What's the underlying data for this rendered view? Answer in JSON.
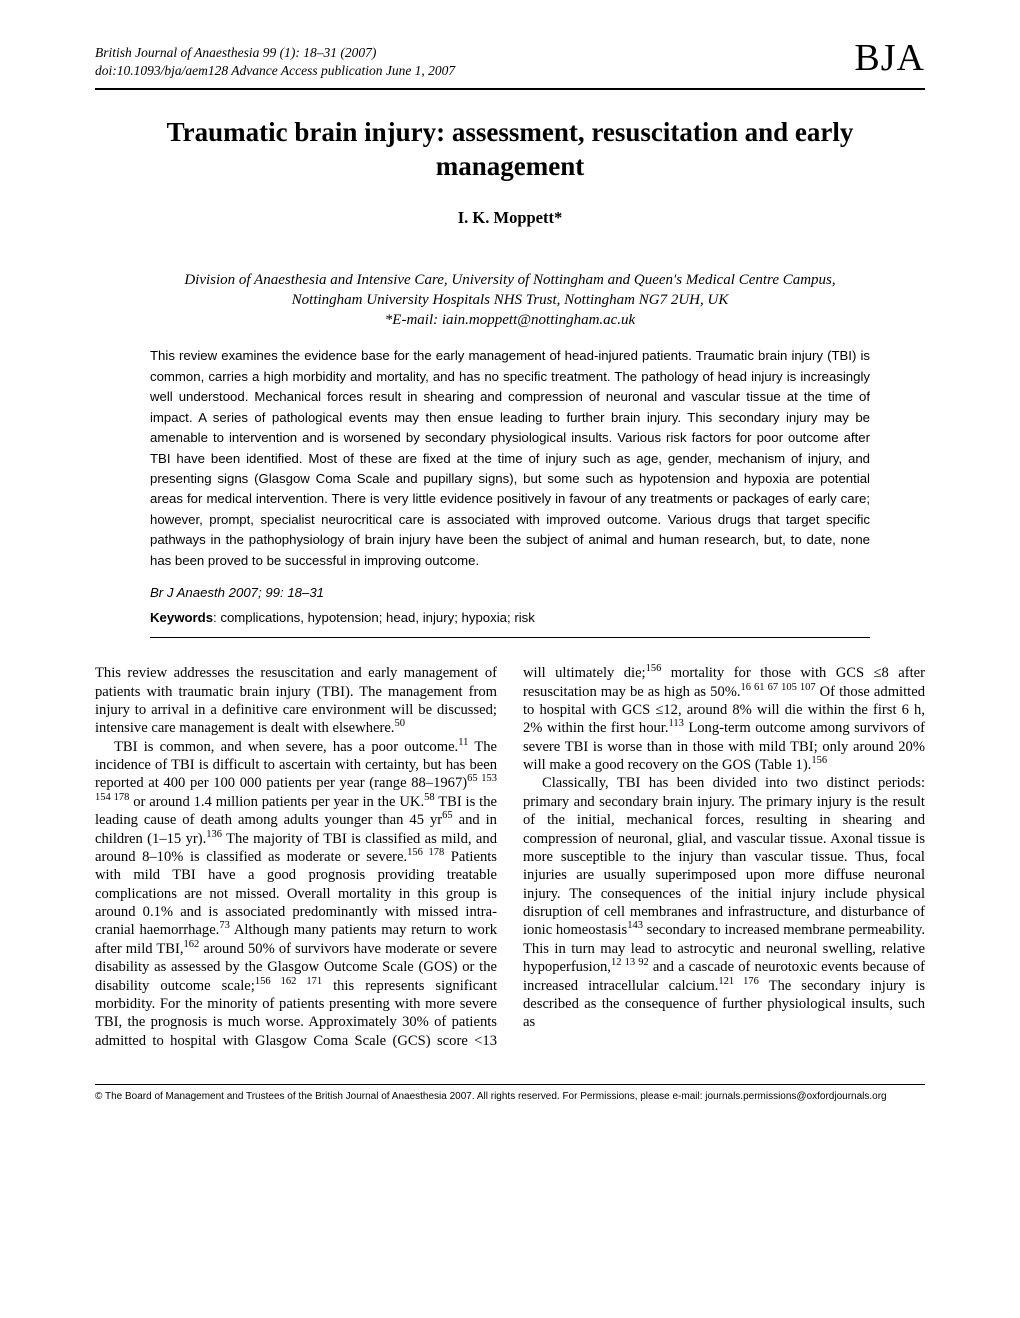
{
  "header": {
    "journal_line": "British Journal of Anaesthesia 99 (1): 18–31 (2007)",
    "doi_line": "doi:10.1093/bja/aem128   Advance Access publication June 1, 2007",
    "logo": "BJA"
  },
  "title": "Traumatic brain injury: assessment, resuscitation and early management",
  "author": "I. K. Moppett*",
  "affiliation": {
    "line1": "Division of Anaesthesia and Intensive Care, University of Nottingham and Queen's Medical Centre Campus,",
    "line2": "Nottingham University Hospitals NHS Trust, Nottingham NG7 2UH, UK",
    "email": "*E-mail: iain.moppett@nottingham.ac.uk"
  },
  "abstract": "This review examines the evidence base for the early management of head-injured patients. Traumatic brain injury (TBI) is common, carries a high morbidity and mortality, and has no specific treatment. The pathology of head injury is increasingly well understood. Mechanical forces result in shearing and compression of neuronal and vascular tissue at the time of impact. A series of pathological events may then ensue leading to further brain injury. This secondary injury may be amenable to intervention and is worsened by secondary physiological insults. Various risk factors for poor outcome after TBI have been identified. Most of these are fixed at the time of injury such as age, gender, mechanism of injury, and presenting signs (Glasgow Coma Scale and pupillary signs), but some such as hypotension and hypoxia are potential areas for medical intervention. There is very little evidence positively in favour of any treatments or packages of early care; however, prompt, specialist neurocritical care is associated with improved outcome. Various drugs that target specific pathways in the pathophysiology of brain injury have been the subject of animal and human research, but, to date, none has been proved to be successful in improving outcome.",
  "citation": "Br J Anaesth 2007; 99: 18–31",
  "keywords_label": "Keywords",
  "keywords_text": ": complications, hypotension; head, injury; hypoxia; risk",
  "body": {
    "p1": "This review addresses the resuscitation and early management of patients with traumatic brain injury (TBI). The management from injury to arrival in a definitive care environment will be discussed; intensive care management is dealt with elsewhere.",
    "p1_sup": "50",
    "p2a": "TBI is common, and when severe, has a poor outcome.",
    "p2a_sup": "11",
    "p2b": " The incidence of TBI is difficult to ascertain with certainty, but has been reported at 400 per 100 000 patients per year (range 88–1967)",
    "p2b_sup": "65 153 154 178",
    "p2c": " or around 1.4 million patients per year in the UK.",
    "p2c_sup": "58",
    "p2d": " TBI is the leading cause of death among adults younger than 45 yr",
    "p2d_sup": "65",
    "p2e": " and in children (1–15 yr).",
    "p2e_sup": "136",
    "p2f": " The majority of TBI is classified as mild, and around 8–10% is classified as moderate or severe.",
    "p2f_sup": "156 178",
    "p2g": " Patients with mild TBI have a good prognosis providing treatable complications are not missed. Overall mortality in this group is around 0.1% and is associated predominantly with missed intra-cranial haemorrhage.",
    "p2g_sup": "73",
    "p2h": " Although many patients may return to work after mild TBI,",
    "p2h_sup": "162",
    "p2i": " around 50% of survivors have moderate or severe disability as assessed by the Glasgow Outcome Scale (GOS) or the disability outcome scale;",
    "p2i_sup": "156 162 171",
    "p2j": " this represents significant morbidity. For the minority of patients presenting with more severe TBI, the prognosis is much worse. Approximately 30% of patients admitted to hospital with Glasgow Coma Scale (GCS) score <13 will ultimately die;",
    "p2j_sup": "156",
    "p2k": " mortality for those with GCS ≤8 after resuscitation may be as high as 50%.",
    "p2k_sup": "16 61 67 105 107",
    "p2l": " Of those admitted to hospital with GCS ≤12, around 8% will die within the first 6 h, 2% within the first hour.",
    "p2l_sup": "113",
    "p2m": " Long-term outcome among survivors of severe TBI is worse than in those with mild TBI; only around 20% will make a good recovery on the GOS (Table 1).",
    "p2m_sup": "156",
    "p3a": "Classically, TBI has been divided into two distinct periods: primary and secondary brain injury. The primary injury is the result of the initial, mechanical forces, resulting in shearing and compression of neuronal, glial, and vascular tissue. Axonal tissue is more susceptible to the injury than vascular tissue. Thus, focal injuries are usually superimposed upon more diffuse neuronal injury. The consequences of the initial injury include physical disruption of cell membranes and infrastructure, and disturbance of ionic homeostasis",
    "p3a_sup": "143",
    "p3b": " secondary to increased membrane permeability. This in turn may lead to astrocytic and neuronal swelling, relative hypoperfusion,",
    "p3b_sup": "12 13 92",
    "p3c": " and a cascade of neurotoxic events because of increased intracellular calcium.",
    "p3c_sup": "121 176",
    "p3d": " The secondary injury is described as the consequence of further physiological insults, such as"
  },
  "footer": "© The Board of Management and Trustees of the British Journal of Anaesthesia 2007. All rights reserved. For Permissions, please e-mail: journals.permissions@oxfordjournals.org"
}
